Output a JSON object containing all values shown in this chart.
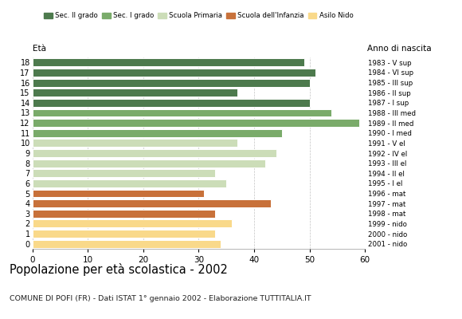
{
  "ages": [
    18,
    17,
    16,
    15,
    14,
    13,
    12,
    11,
    10,
    9,
    8,
    7,
    6,
    5,
    4,
    3,
    2,
    1,
    0
  ],
  "values": [
    49,
    51,
    50,
    37,
    50,
    54,
    59,
    45,
    37,
    44,
    42,
    33,
    35,
    31,
    43,
    33,
    36,
    33,
    34
  ],
  "anno_nascita": [
    "1983 - V sup",
    "1984 - VI sup",
    "1985 - III sup",
    "1986 - II sup",
    "1987 - I sup",
    "1988 - III med",
    "1989 - II med",
    "1990 - I med",
    "1991 - V el",
    "1992 - IV el",
    "1993 - III el",
    "1994 - II el",
    "1995 - I el",
    "1996 - mat",
    "1997 - mat",
    "1998 - mat",
    "1999 - nido",
    "2000 - nido",
    "2001 - nido"
  ],
  "bar_colors_by_age": {
    "18": "#4d7a4d",
    "17": "#4d7a4d",
    "16": "#4d7a4d",
    "15": "#4d7a4d",
    "14": "#4d7a4d",
    "13": "#7aab6a",
    "12": "#7aab6a",
    "11": "#7aab6a",
    "10": "#ccddb8",
    "9": "#ccddb8",
    "8": "#ccddb8",
    "7": "#ccddb8",
    "6": "#ccddb8",
    "5": "#c8713a",
    "4": "#c8713a",
    "3": "#c8713a",
    "2": "#f9d98a",
    "1": "#f9d98a",
    "0": "#f9d98a"
  },
  "title": "Popolazione per età scolastica - 2002",
  "subtitle": "COMUNE DI POFI (FR) - Dati ISTAT 1° gennaio 2002 - Elaborazione TUTTITALIA.IT",
  "xlabel_eta": "Età",
  "xlabel_anno": "Anno di nascita",
  "xlim": [
    0,
    60
  ],
  "xticks": [
    0,
    10,
    20,
    30,
    40,
    50,
    60
  ],
  "legend_labels": [
    "Sec. II grado",
    "Sec. I grado",
    "Scuola Primaria",
    "Scuola dell'Infanzia",
    "Asilo Nido"
  ],
  "legend_colors": [
    "#4d7a4d",
    "#7aab6a",
    "#ccddb8",
    "#c8713a",
    "#f9d98a"
  ],
  "bg_color": "#ffffff",
  "grid_color": "#aaaaaa"
}
